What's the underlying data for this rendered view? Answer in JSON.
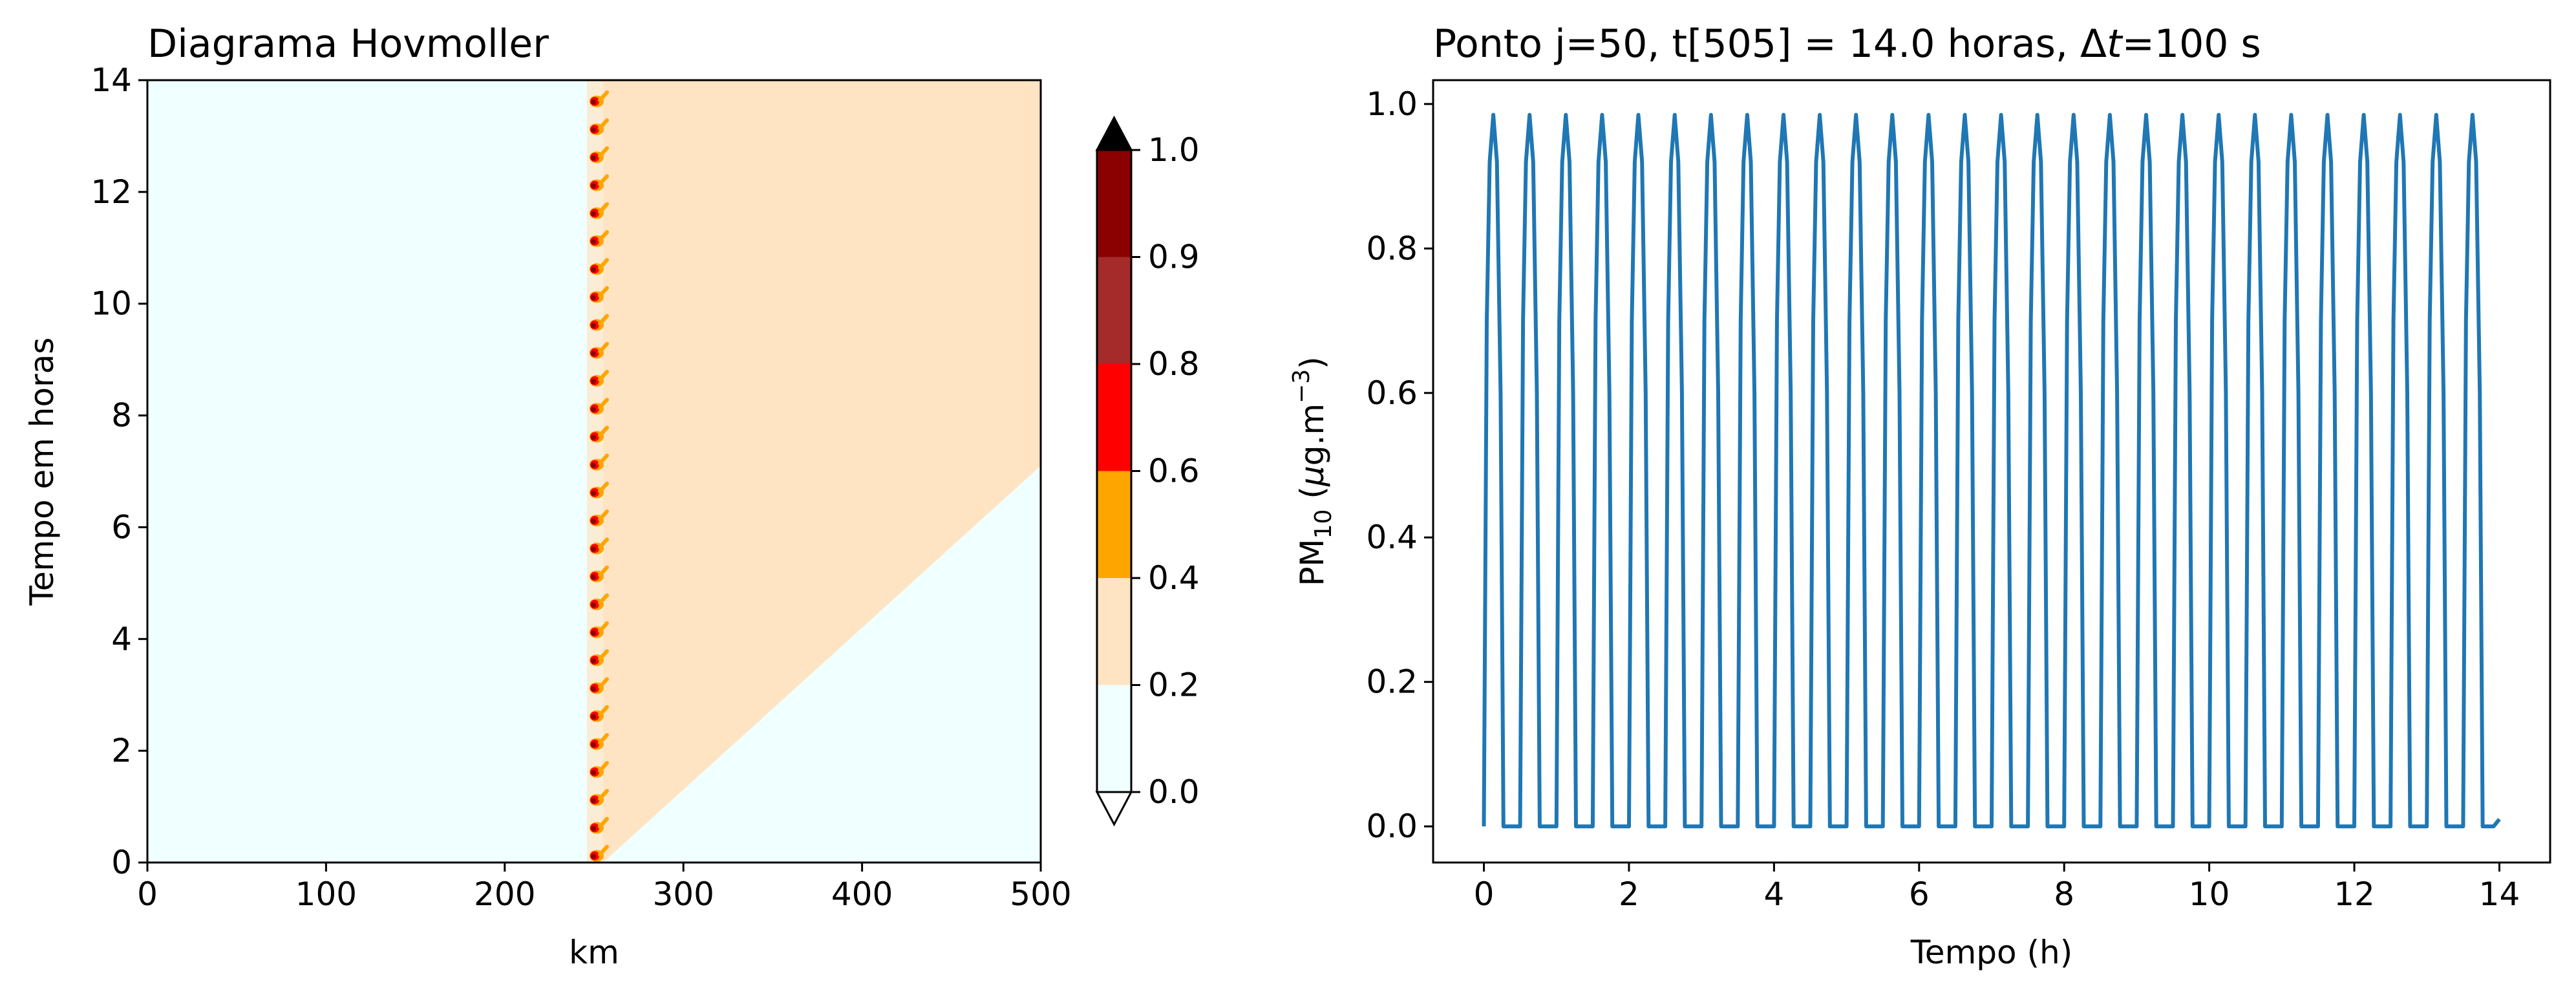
{
  "chart_data": [
    {
      "type": "heatmap",
      "title": "Diagrama Hovmoller",
      "xlabel": "km",
      "ylabel": "Tempo em horas",
      "xlim": [
        0,
        500
      ],
      "ylim": [
        0,
        14
      ],
      "xticks": [
        "0",
        "100",
        "200",
        "300",
        "400",
        "500"
      ],
      "yticks": [
        "0",
        "2",
        "4",
        "6",
        "8",
        "10",
        "12",
        "14"
      ],
      "description_values": {
        "source_x_km": 250,
        "pulse_period_h": 0.5,
        "pulse_count": 28,
        "plume_front": [
          [
            250,
            0
          ],
          [
            500,
            7.1
          ]
        ]
      },
      "colorbar": {
        "levels": [
          0.0,
          0.2,
          0.4,
          0.6,
          0.8,
          0.9,
          1.0
        ],
        "tick_labels": [
          "0.0",
          "0.2",
          "0.4",
          "0.6",
          "0.8",
          "0.9",
          "1.0"
        ],
        "colors": [
          "#f0ffff",
          "#ffe4c4",
          "#ffa500",
          "#ff0000",
          "#a52a2a",
          "#8b0000"
        ],
        "over_color": "#000000",
        "under_color": "#ffffff",
        "extend": "both"
      }
    },
    {
      "type": "line",
      "title_parts": {
        "main": "Ponto j=50, t[505] = 14.0 horas, Δ",
        "italic": "t",
        "tail": "=100 s"
      },
      "xlabel": "Tempo (h)",
      "ylabel_parts": {
        "pm": "PM",
        "pm_sub": "10",
        "open": " (",
        "mu": "μ",
        "unit": "g.m",
        "exp": "−3",
        "close": ")"
      },
      "xlim": [
        -0.7,
        14.7
      ],
      "ylim": [
        -0.05,
        1.033
      ],
      "xticks": [
        "0",
        "2",
        "4",
        "6",
        "8",
        "10",
        "12",
        "14"
      ],
      "yticks": [
        "0.0",
        "0.2",
        "0.4",
        "0.6",
        "0.8",
        "1.0"
      ],
      "series": [
        {
          "color": "#1f77b4",
          "pattern": {
            "period_h": 0.5,
            "pulses": 28,
            "peak": 0.985,
            "end_t": 14.0,
            "end_value": 0.01
          }
        }
      ]
    }
  ]
}
